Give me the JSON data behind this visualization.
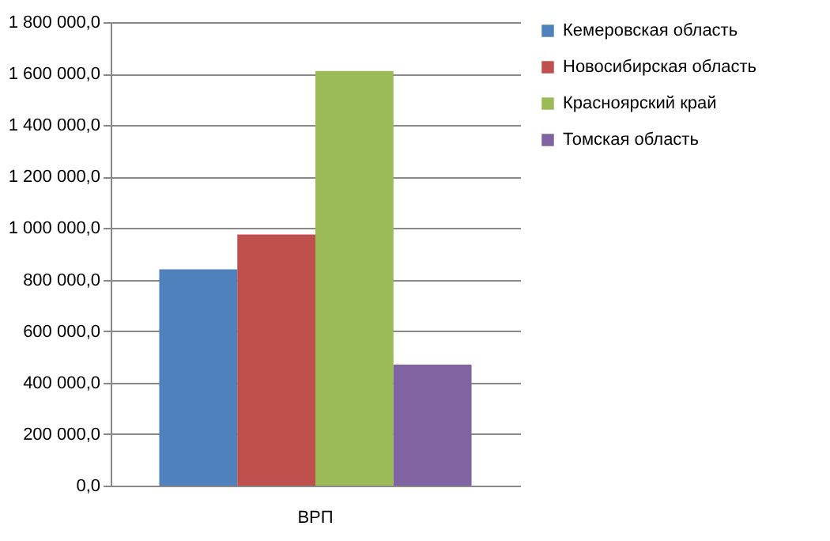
{
  "chart_data": {
    "type": "bar",
    "categories": [
      "ВРП"
    ],
    "series": [
      {
        "name": "Кемеровская область",
        "color": "#4f81bd",
        "values": [
          840000
        ]
      },
      {
        "name": "Новосибирская область",
        "color": "#c0504d",
        "values": [
          975000
        ]
      },
      {
        "name": "Красноярский край",
        "color": "#9bbb59",
        "values": [
          1610000
        ]
      },
      {
        "name": "Томская область",
        "color": "#8064a2",
        "values": [
          470000
        ]
      }
    ],
    "ylim": [
      0,
      1800000
    ],
    "yticks": [
      {
        "value": 0,
        "label": "0,0"
      },
      {
        "value": 200000,
        "label": "200 000,0"
      },
      {
        "value": 400000,
        "label": "400 000,0"
      },
      {
        "value": 600000,
        "label": "600 000,0"
      },
      {
        "value": 800000,
        "label": "800 000,0"
      },
      {
        "value": 1000000,
        "label": "1 000 000,0"
      },
      {
        "value": 1200000,
        "label": "1 200 000,0"
      },
      {
        "value": 1400000,
        "label": "1 400 000,0"
      },
      {
        "value": 1600000,
        "label": "1 600 000,0"
      },
      {
        "value": 1800000,
        "label": "1 800 000,0"
      }
    ],
    "grid": "y",
    "legend": "right"
  }
}
